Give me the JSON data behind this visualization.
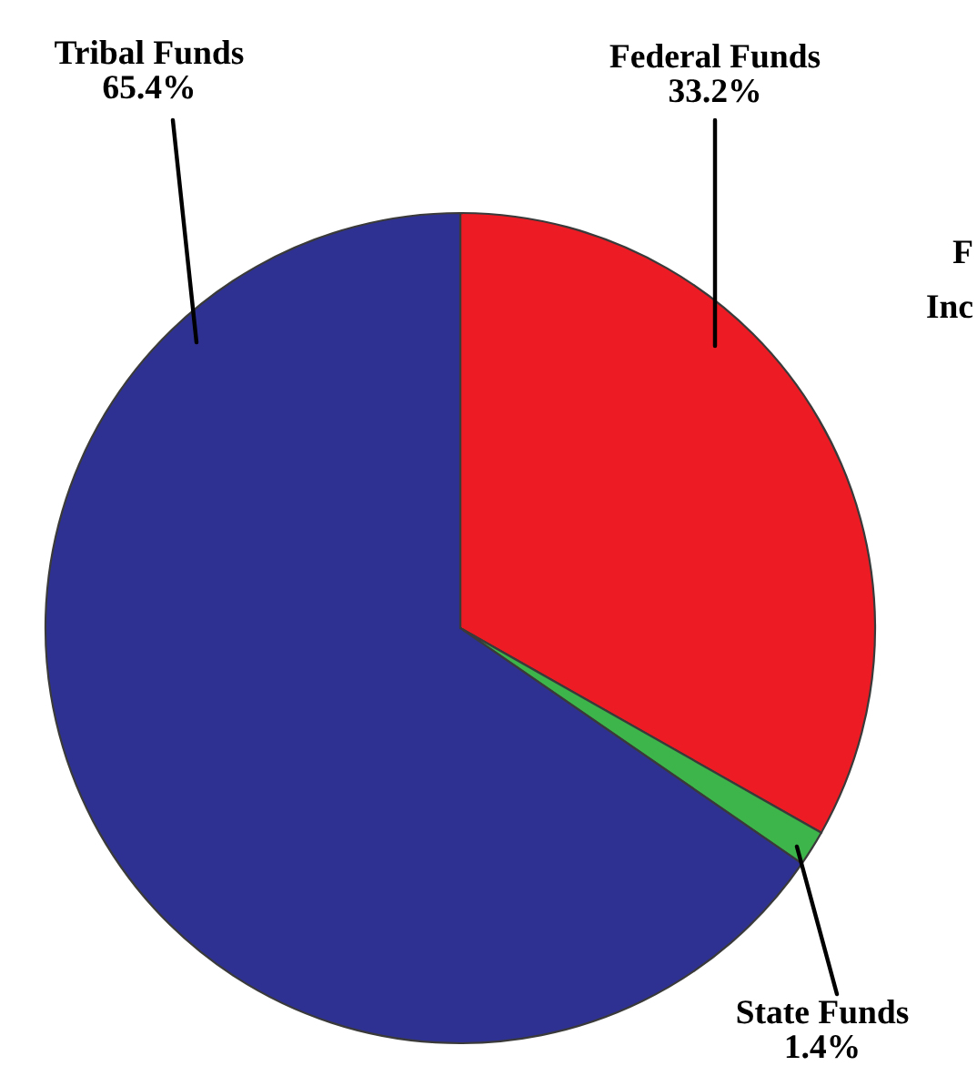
{
  "chart_data": {
    "type": "pie",
    "categories": [
      "Federal Funds",
      "State Funds",
      "Tribal Funds"
    ],
    "values": [
      33.2,
      1.4,
      65.4
    ],
    "value_labels": [
      "33.2%",
      "1.4%",
      "65.4%"
    ],
    "colors": [
      "#ed1c24",
      "#3db54a",
      "#2e3192"
    ],
    "annotations": [
      "F",
      "Inc"
    ]
  }
}
